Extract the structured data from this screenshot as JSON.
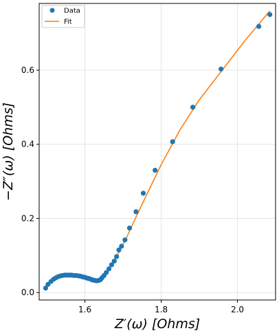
{
  "chart_data": {
    "type": "scatter",
    "title": "",
    "xlabel": "Z′(ω) [Ohms]",
    "ylabel": "−Z″(ω) [Ohms]",
    "xlim": [
      1.48,
      2.1
    ],
    "ylim": [
      -0.02,
      0.78
    ],
    "xticks": [
      1.6,
      1.8,
      2.0
    ],
    "xtick_labels": [
      "1.6",
      "1.8",
      "2.0"
    ],
    "yticks": [
      0.0,
      0.2,
      0.4,
      0.6
    ],
    "ytick_labels": [
      "0.0",
      "0.2",
      "0.4",
      "0.6"
    ],
    "grid": true,
    "legend_position": "top-left",
    "colors": {
      "data": "#1f77b4",
      "fit": "#ff7f0e"
    },
    "series": [
      {
        "name": "Data",
        "kind": "scatter",
        "x": [
          1.497,
          1.503,
          1.511,
          1.518,
          1.524,
          1.53,
          1.536,
          1.541,
          1.547,
          1.553,
          1.559,
          1.565,
          1.571,
          1.577,
          1.583,
          1.589,
          1.595,
          1.6,
          1.605,
          1.61,
          1.615,
          1.62,
          1.625,
          1.629,
          1.633,
          1.637,
          1.641,
          1.645,
          1.65,
          1.656,
          1.663,
          1.67,
          1.677,
          1.683,
          1.689,
          1.696,
          1.705,
          1.717,
          1.734,
          1.753,
          1.784,
          1.83,
          1.883,
          1.957,
          2.056,
          2.085
        ],
        "y": [
          0.012,
          0.022,
          0.03,
          0.036,
          0.04,
          0.043,
          0.045,
          0.046,
          0.047,
          0.047,
          0.047,
          0.047,
          0.046,
          0.046,
          0.045,
          0.044,
          0.042,
          0.041,
          0.039,
          0.038,
          0.036,
          0.034,
          0.033,
          0.032,
          0.032,
          0.033,
          0.035,
          0.04,
          0.046,
          0.054,
          0.064,
          0.075,
          0.085,
          0.097,
          0.115,
          0.125,
          0.142,
          0.174,
          0.218,
          0.268,
          0.33,
          0.407,
          0.5,
          0.603,
          0.718,
          0.75
        ]
      },
      {
        "name": "Fit",
        "kind": "line",
        "x": [
          1.497,
          1.505,
          1.515,
          1.525,
          1.535,
          1.545,
          1.555,
          1.565,
          1.575,
          1.585,
          1.595,
          1.605,
          1.615,
          1.625,
          1.633,
          1.64,
          1.65,
          1.66,
          1.675,
          1.69,
          1.71,
          1.73,
          1.76,
          1.8,
          1.85,
          1.9,
          1.96,
          2.02,
          2.085
        ],
        "y": [
          0.012,
          0.023,
          0.035,
          0.043,
          0.048,
          0.05,
          0.051,
          0.05,
          0.049,
          0.047,
          0.044,
          0.04,
          0.035,
          0.031,
          0.03,
          0.033,
          0.045,
          0.06,
          0.085,
          0.11,
          0.15,
          0.195,
          0.26,
          0.345,
          0.44,
          0.52,
          0.6,
          0.68,
          0.76
        ]
      }
    ]
  }
}
